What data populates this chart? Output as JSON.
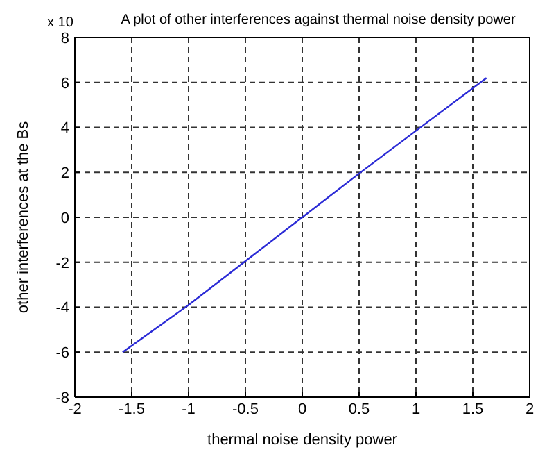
{
  "chart_data": {
    "type": "line",
    "title": "A plot of other interferences against thermal noise density power",
    "xlabel": "thermal noise density power",
    "ylabel": "other interferences at the Bs",
    "annotations": [
      "x 10"
    ],
    "x": [
      -1.58,
      -1,
      0,
      0.5,
      1,
      1.62
    ],
    "series": [
      {
        "color": "#2b2bd6",
        "values": [
          -6,
          -3.9,
          0,
          1.95,
          3.85,
          6.2
        ]
      }
    ],
    "xlim": [
      -2,
      2
    ],
    "xticks": [
      -2,
      -1.5,
      -1,
      -0.5,
      0,
      0.5,
      1,
      1.5,
      2
    ],
    "ylim": [
      -8,
      8
    ],
    "yticks": [
      -8,
      -6,
      -4,
      -2,
      0,
      2,
      4,
      6,
      8
    ],
    "grid": true,
    "marker": "none",
    "line_style": "solid"
  }
}
